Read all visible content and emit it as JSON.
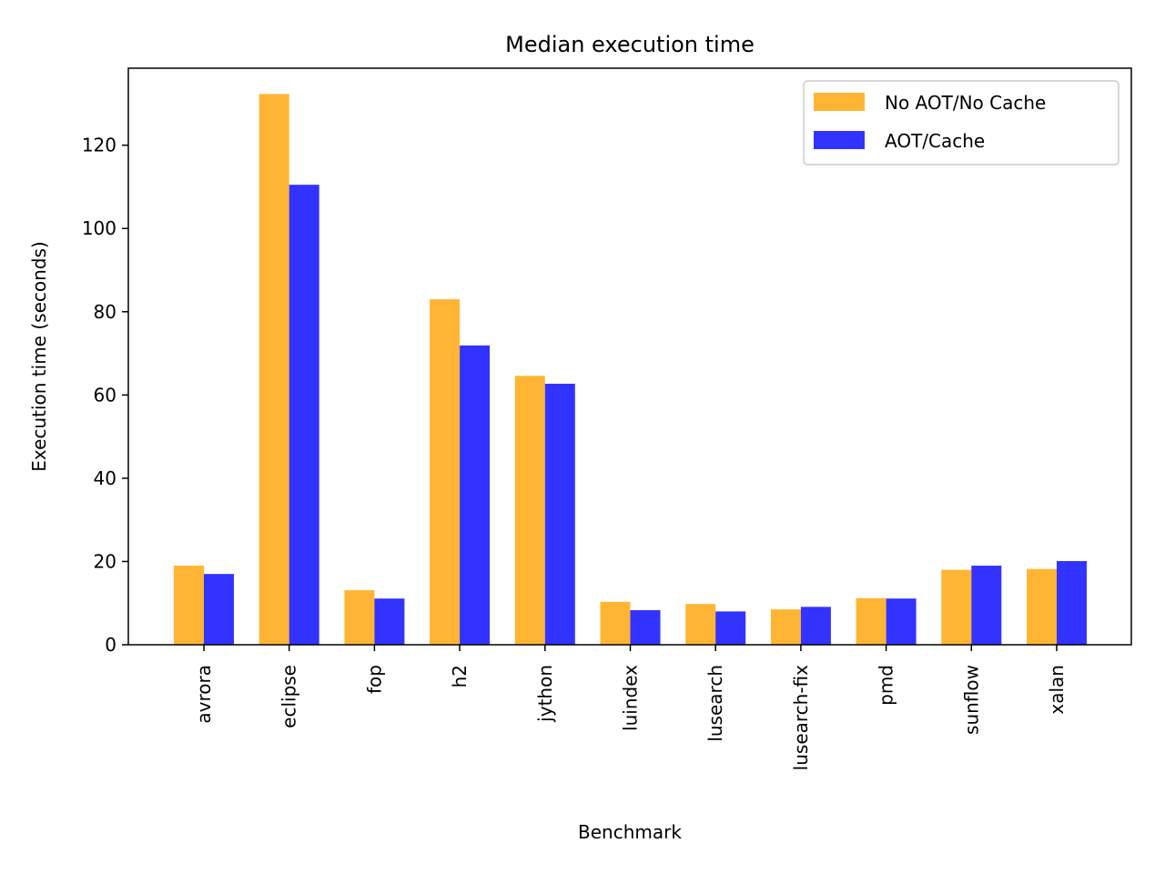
{
  "chart_data": {
    "type": "bar",
    "title": "Median execution time",
    "xlabel": "Benchmark",
    "ylabel": "Execution time (seconds)",
    "categories": [
      "avrora",
      "eclipse",
      "fop",
      "h2",
      "jython",
      "luindex",
      "lusearch",
      "lusearch-fix",
      "pmd",
      "sunflow",
      "xalan"
    ],
    "series": [
      {
        "name": "No AOT/No Cache",
        "color": "#ffb533",
        "values": [
          19,
          132.3,
          13.1,
          83,
          64.6,
          10.3,
          9.8,
          8.5,
          11.2,
          18,
          18.2
        ]
      },
      {
        "name": "AOT/Cache",
        "color": "#3333ff",
        "values": [
          17,
          110.5,
          11.1,
          71.9,
          62.7,
          8.3,
          8,
          9.1,
          11.1,
          19,
          20.1
        ]
      }
    ],
    "ylim": [
      0,
      138.5
    ],
    "yticks": [
      0,
      20,
      40,
      60,
      80,
      100,
      120
    ],
    "grid": false,
    "legend": "upper right"
  }
}
